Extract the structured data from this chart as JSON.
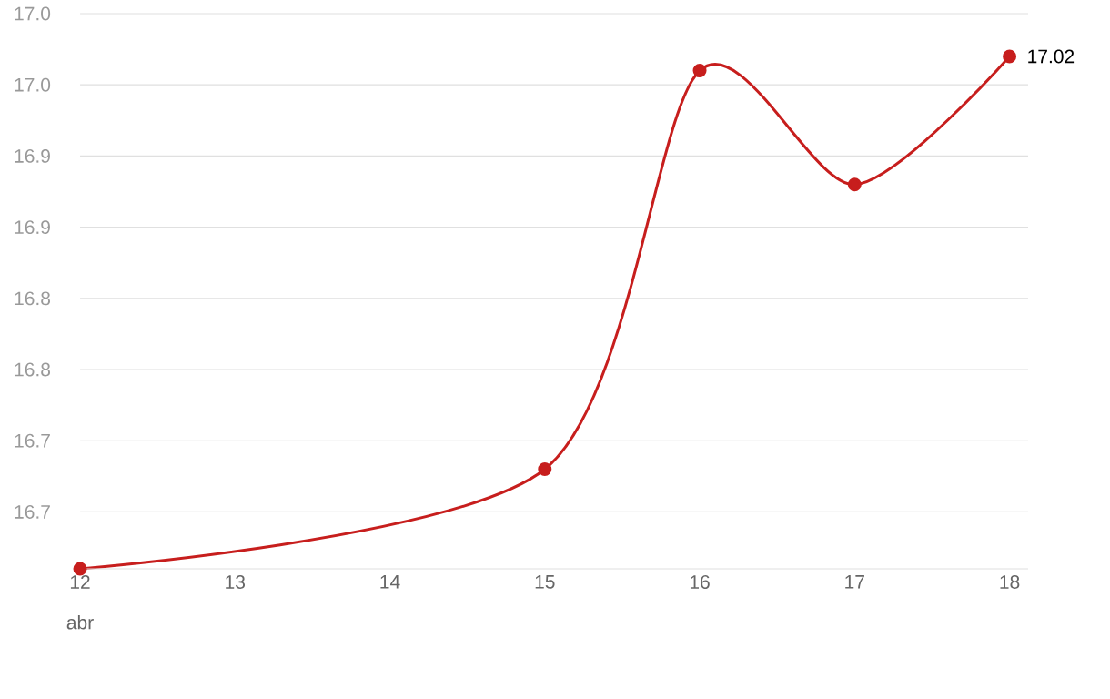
{
  "chart_data": {
    "type": "line",
    "x": [
      12,
      13,
      14,
      15,
      16,
      17,
      18
    ],
    "values": [
      16.66,
      null,
      null,
      16.73,
      17.01,
      16.93,
      17.02
    ],
    "value_labels": [
      null,
      null,
      null,
      null,
      null,
      null,
      "17.02"
    ],
    "color": "#c71e1d",
    "marker": "circle",
    "grid": "y",
    "xlim": [
      12,
      18.12
    ],
    "ylim": [
      16.66,
      17.05
    ],
    "xticks": [
      12,
      13,
      14,
      15,
      16,
      17,
      18
    ],
    "yticks": [
      {
        "value": 16.7,
        "label": "16.7"
      },
      {
        "value": 16.75,
        "label": "16.7"
      },
      {
        "value": 16.8,
        "label": "16.8"
      },
      {
        "value": 16.85,
        "label": "16.8"
      },
      {
        "value": 16.9,
        "label": "16.9"
      },
      {
        "value": 16.95,
        "label": "16.9"
      },
      {
        "value": 17.0,
        "label": "17.0"
      },
      {
        "value": 17.05,
        "label": "17.0"
      }
    ],
    "annotations": [
      "abr"
    ]
  }
}
